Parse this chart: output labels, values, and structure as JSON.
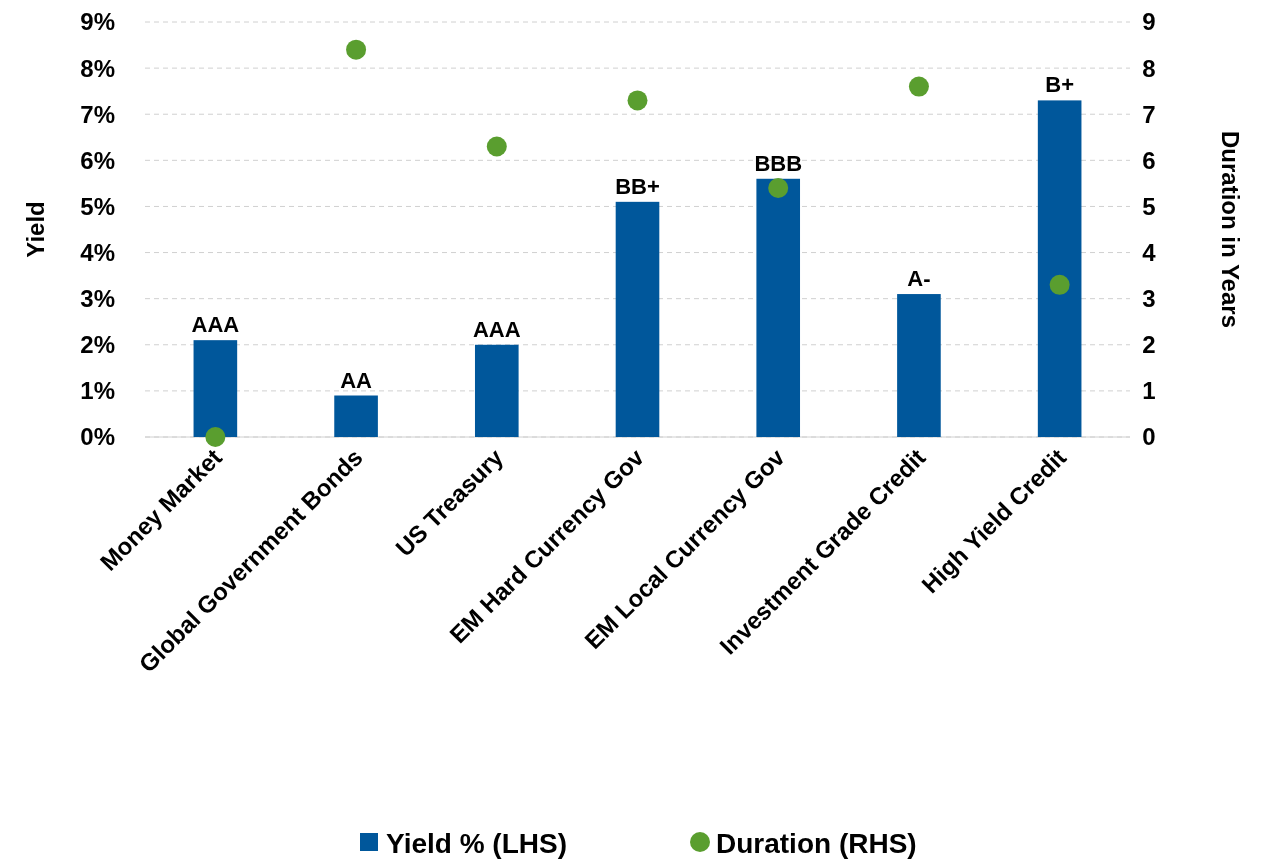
{
  "chart_data": {
    "type": "bar",
    "ylabel": "Yield",
    "y2label": "Duration in Years",
    "categories": [
      "Money Market",
      "Global Government Bonds",
      "US Treasury",
      "EM Hard Currency Gov",
      "EM Local Currency Gov",
      "Investment Grade Credit",
      "High Yield Credit"
    ],
    "series": [
      {
        "name": "Yield % (LHS)",
        "color": "#00579b",
        "values": [
          2.1,
          0.9,
          2.0,
          5.1,
          5.6,
          3.1,
          7.3
        ],
        "value_labels": [
          "AAA",
          "AA",
          "AAA",
          "BB+",
          "BBB",
          "A-",
          "B+"
        ]
      },
      {
        "name": "Duration (RHS)",
        "type": "scatter",
        "axis": "y2",
        "color": "#5a9e2f",
        "values": [
          0,
          8.4,
          6.3,
          7.3,
          5.4,
          7.6,
          3.3
        ]
      }
    ],
    "ylim": [
      0,
      9
    ],
    "yticks": [
      {
        "value": 0,
        "label": "0%"
      },
      {
        "value": 1,
        "label": "1%"
      },
      {
        "value": 2,
        "label": "2%"
      },
      {
        "value": 3,
        "label": "3%"
      },
      {
        "value": 4,
        "label": "4%"
      },
      {
        "value": 5,
        "label": "5%"
      },
      {
        "value": 6,
        "label": "6%"
      },
      {
        "value": 7,
        "label": "7%"
      },
      {
        "value": 8,
        "label": "8%"
      },
      {
        "value": 9,
        "label": "9%"
      }
    ],
    "y2lim": [
      0,
      9
    ],
    "y2ticks": [
      0,
      1,
      2,
      3,
      4,
      5,
      6,
      7,
      8,
      9
    ],
    "grid": "y",
    "legend": "bottom",
    "marker": "circle"
  }
}
